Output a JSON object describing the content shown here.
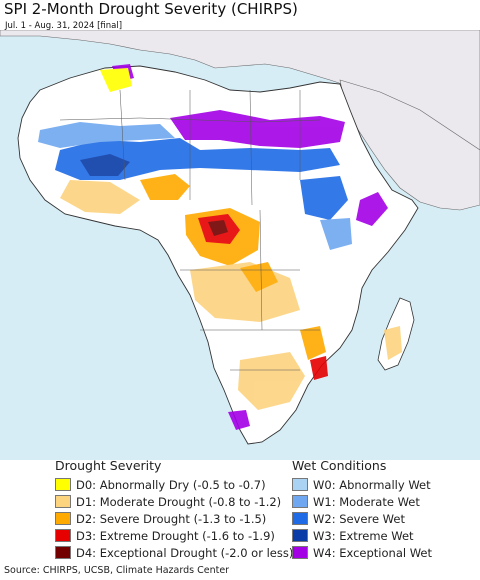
{
  "header": {
    "title": "SPI 2-Month Drought Severity (CHIRPS)",
    "subtitle": "Jul. 1 - Aug. 31, 2024 [final]"
  },
  "legend": {
    "drought": {
      "heading": "Drought Severity",
      "items": [
        {
          "label": "D0: Abnormally Dry (-0.5 to -0.7)",
          "color": "#ffff00"
        },
        {
          "label": "D1: Moderate Drought (-0.8 to -1.2)",
          "color": "#fcd37f"
        },
        {
          "label": "D2: Severe Drought (-1.3 to -1.5)",
          "color": "#ffaa00"
        },
        {
          "label": "D3: Extreme Drought (-1.6 to -1.9)",
          "color": "#e60000"
        },
        {
          "label": "D4: Exceptional Drought (-2.0 or less)",
          "color": "#730000"
        }
      ]
    },
    "wet": {
      "heading": "Wet Conditions",
      "items": [
        {
          "label": "W0: Abnormally Wet",
          "color": "#aad2f2"
        },
        {
          "label": "W1: Moderate Wet",
          "color": "#6fa8f0"
        },
        {
          "label": "W2: Severe Wet",
          "color": "#1f6be6"
        },
        {
          "label": "W3: Extreme Wet",
          "color": "#0a3ca8"
        },
        {
          "label": "W4: Exceptional Wet",
          "color": "#a400e6"
        }
      ]
    }
  },
  "footer": {
    "source": "Source: CHIRPS, UCSB, Climate Hazards Center"
  },
  "colors": {
    "ocean": "#d6edf6",
    "land_outside": "#ebe8ee",
    "land_africa": "#ffffff",
    "border": "#555555"
  }
}
